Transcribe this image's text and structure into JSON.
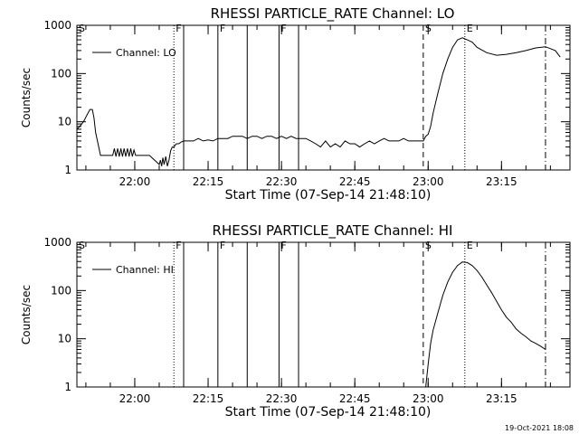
{
  "footer_date": "19-Oct-2021 18:08",
  "chart_data": [
    {
      "type": "line",
      "title": "RHESSI PARTICLE_RATE Channel: LO",
      "xlabel": "Start Time (07-Sep-14 21:48:10)",
      "ylabel": "Counts/sec",
      "yscale": "log",
      "ylim": [
        1,
        1000
      ],
      "xlim": [
        "21:48:10",
        "23:29:00"
      ],
      "yticks": [
        "1",
        "10",
        "100",
        "1000"
      ],
      "xticks": [
        "22:00",
        "22:15",
        "22:30",
        "22:45",
        "23:00",
        "23:15"
      ],
      "grid": false,
      "legend": {
        "position": "top-left",
        "entries": [
          "Channel: LO"
        ]
      },
      "series": [
        {
          "name": "Channel: LO",
          "x": [
            "21:48:10",
            "21:48:45",
            "21:49:30",
            "21:50:15",
            "21:50:50",
            "21:51:20",
            "21:51:40",
            "21:52:00",
            "21:53:00",
            "21:55:00",
            "21:55:30",
            "21:55:50",
            "21:56:10",
            "21:56:30",
            "21:56:50",
            "21:57:10",
            "21:57:30",
            "21:57:50",
            "21:58:10",
            "21:58:30",
            "21:58:50",
            "21:59:10",
            "21:59:30",
            "21:59:50",
            "22:00:10",
            "22:01:00",
            "22:03:00",
            "22:05:00",
            "22:05:15",
            "22:05:30",
            "22:05:45",
            "22:06:00",
            "22:06:20",
            "22:06:40",
            "22:07:00",
            "22:07:20",
            "22:07:40",
            "22:08:00",
            "22:08:30",
            "22:09:00",
            "22:09:30",
            "22:10:00",
            "22:11:00",
            "22:12:00",
            "22:13:00",
            "22:14:00",
            "22:15:00",
            "22:16:00",
            "22:17:00",
            "22:18:00",
            "22:19:00",
            "22:20:00",
            "22:21:00",
            "22:22:00",
            "22:23:00",
            "22:24:00",
            "22:25:00",
            "22:26:00",
            "22:27:00",
            "22:28:00",
            "22:29:00",
            "22:30:00",
            "22:31:00",
            "22:32:00",
            "22:33:00",
            "22:34:00",
            "22:35:00",
            "22:36:00",
            "22:37:00",
            "22:38:00",
            "22:39:00",
            "22:40:00",
            "22:41:00",
            "22:42:00",
            "22:43:00",
            "22:44:00",
            "22:45:00",
            "22:46:00",
            "22:47:00",
            "22:48:00",
            "22:49:00",
            "22:50:00",
            "22:51:00",
            "22:52:00",
            "22:53:00",
            "22:54:00",
            "22:55:00",
            "22:56:00",
            "22:57:00",
            "22:58:00",
            "22:59:00",
            "22:59:30",
            "23:00:00",
            "23:00:30",
            "23:01:00",
            "23:02:00",
            "23:03:00",
            "23:04:00",
            "23:05:00",
            "23:06:00",
            "23:07:00",
            "23:08:00",
            "23:09:00",
            "23:10:00",
            "23:12:00",
            "23:14:00",
            "23:16:00",
            "23:18:00",
            "23:20:00",
            "23:22:00",
            "23:24:00",
            "23:26:00",
            "23:27:00"
          ],
          "values": [
            7,
            8,
            10,
            14,
            18,
            18,
            12,
            6,
            2,
            2,
            2,
            2.8,
            1.9,
            2.8,
            1.9,
            2.8,
            1.9,
            2.8,
            1.9,
            2.8,
            1.9,
            2.8,
            1.9,
            2.6,
            2,
            2,
            2,
            1.3,
            1.6,
            1.2,
            1.8,
            1.3,
            1.9,
            1.2,
            1.6,
            2.5,
            3,
            3,
            3.5,
            3.5,
            3.8,
            4,
            4,
            4,
            4.5,
            4,
            4.2,
            4,
            4.5,
            4.5,
            4.5,
            5,
            5,
            5,
            4.5,
            5,
            5,
            4.5,
            5,
            5,
            4.5,
            5,
            4.5,
            5,
            4.5,
            4.5,
            4.5,
            4,
            3.5,
            3,
            4,
            3,
            3.5,
            3,
            4,
            3.5,
            3.5,
            3,
            3.5,
            4,
            3.5,
            4,
            4.5,
            4,
            4,
            4,
            4.5,
            4,
            4,
            4,
            4,
            5,
            5.5,
            8,
            15,
            40,
            100,
            200,
            350,
            500,
            550,
            500,
            450,
            350,
            270,
            240,
            250,
            270,
            300,
            340,
            360,
            300,
            220
          ]
        }
      ],
      "markers": [
        {
          "label": "S",
          "time": "21:48:10",
          "style": "solid"
        },
        {
          "label": "F",
          "time": "22:08:00",
          "style": "dotted"
        },
        {
          "label": "",
          "time": "22:10:00",
          "style": "solid"
        },
        {
          "label": "F",
          "time": "22:17:00",
          "style": "solid"
        },
        {
          "label": "",
          "time": "22:23:00",
          "style": "solid"
        },
        {
          "label": "F",
          "time": "22:29:30",
          "style": "solid"
        },
        {
          "label": "",
          "time": "22:33:30",
          "style": "solid"
        },
        {
          "label": "S",
          "time": "22:59:00",
          "style": "dashed"
        },
        {
          "label": "E",
          "time": "23:07:30",
          "style": "dotted"
        },
        {
          "label": "",
          "time": "23:24:00",
          "style": "dashdot"
        }
      ]
    },
    {
      "type": "line",
      "title": "RHESSI PARTICLE_RATE Channel: HI",
      "xlabel": "Start Time (07-Sep-14 21:48:10)",
      "ylabel": "Counts/sec",
      "yscale": "log",
      "ylim": [
        1,
        1000
      ],
      "xlim": [
        "21:48:10",
        "23:29:00"
      ],
      "yticks": [
        "1",
        "10",
        "100",
        "1000"
      ],
      "xticks": [
        "22:00",
        "22:15",
        "22:30",
        "22:45",
        "23:00",
        "23:15"
      ],
      "grid": false,
      "legend": {
        "position": "top-left",
        "entries": [
          "Channel: HI"
        ]
      },
      "series": [
        {
          "name": "Channel: HI",
          "x": [
            "22:59:30",
            "23:00:00",
            "23:00:30",
            "23:01:00",
            "23:02:00",
            "23:03:00",
            "23:04:00",
            "23:05:00",
            "23:06:00",
            "23:07:00",
            "23:08:00",
            "23:09:00",
            "23:10:00",
            "23:11:00",
            "23:12:00",
            "23:13:00",
            "23:14:00",
            "23:15:00",
            "23:16:00",
            "23:17:00",
            "23:18:00",
            "23:19:00",
            "23:20:00",
            "23:21:00",
            "23:22:00",
            "23:23:00",
            "23:24:00"
          ],
          "values": [
            1,
            3,
            8,
            15,
            35,
            80,
            150,
            240,
            330,
            390,
            380,
            330,
            260,
            190,
            130,
            90,
            60,
            40,
            28,
            22,
            16,
            13,
            11,
            9,
            8,
            7,
            6
          ]
        }
      ],
      "markers": [
        {
          "label": "S",
          "time": "21:48:10",
          "style": "solid"
        },
        {
          "label": "F",
          "time": "22:08:00",
          "style": "dotted"
        },
        {
          "label": "",
          "time": "22:10:00",
          "style": "solid"
        },
        {
          "label": "F",
          "time": "22:17:00",
          "style": "solid"
        },
        {
          "label": "",
          "time": "22:23:00",
          "style": "solid"
        },
        {
          "label": "F",
          "time": "22:29:30",
          "style": "solid"
        },
        {
          "label": "",
          "time": "22:33:30",
          "style": "solid"
        },
        {
          "label": "S",
          "time": "22:59:00",
          "style": "dashed"
        },
        {
          "label": "E",
          "time": "23:07:30",
          "style": "dotted"
        },
        {
          "label": "",
          "time": "23:24:00",
          "style": "dashdot"
        }
      ]
    }
  ]
}
